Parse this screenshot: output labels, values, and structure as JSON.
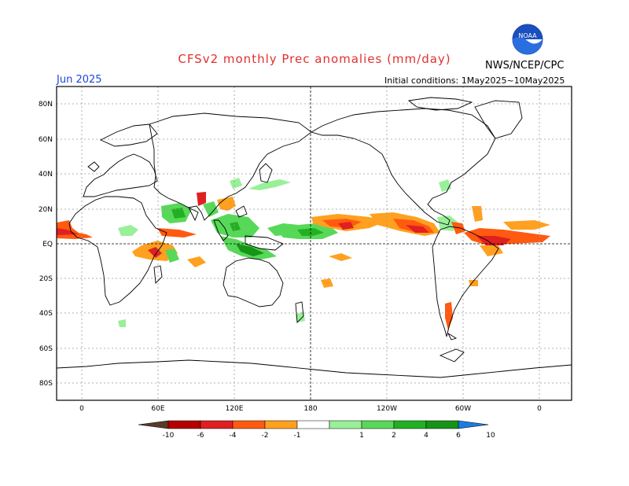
{
  "title": "CFSv2 monthly Prec anomalies (mm/day)",
  "organization": "NWS/NCEP/CPC",
  "logo_text": "NOAA",
  "target_month": "Jun 2025",
  "initial_conditions": "Initial conditions: 1May2025~10May2025",
  "lat_labels": [
    "80N",
    "60N",
    "40N",
    "20N",
    "EQ",
    "20S",
    "40S",
    "60S",
    "80S"
  ],
  "lon_labels": [
    "0",
    "60E",
    "120E",
    "180",
    "120W",
    "60W",
    "0"
  ],
  "colorbar": {
    "labels": [
      "-10",
      "-6",
      "-4",
      "-2",
      "-1",
      "1",
      "2",
      "4",
      "6",
      "10"
    ],
    "colors": [
      "#5a3a2a",
      "#b40000",
      "#e02020",
      "#ff5a10",
      "#ffa020",
      "#ffffff",
      "#98f098",
      "#58d858",
      "#22b022",
      "#169416",
      "#1e7be0"
    ]
  },
  "colors": {
    "title": "#e0302f",
    "month": "#1d47d8",
    "wet": "#58d858",
    "wet_strong": "#169416",
    "dry": "#ffa020",
    "dry_strong": "#e02020",
    "dry_extreme": "#b40000"
  }
}
